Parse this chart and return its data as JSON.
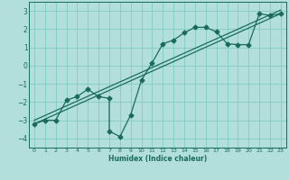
{
  "xlabel": "Humidex (Indice chaleur)",
  "bg_color": "#b2dfdb",
  "grid_color": "#80cbc4",
  "line_color": "#1a6b5a",
  "xlim": [
    -0.5,
    23.5
  ],
  "ylim": [
    -4.5,
    3.5
  ],
  "xticks": [
    0,
    1,
    2,
    3,
    4,
    5,
    6,
    7,
    8,
    9,
    10,
    11,
    12,
    13,
    14,
    15,
    16,
    17,
    18,
    19,
    20,
    21,
    22,
    23
  ],
  "yticks": [
    -4,
    -3,
    -2,
    -1,
    0,
    1,
    2,
    3
  ],
  "curve_x": [
    0,
    1,
    2,
    3,
    4,
    5,
    6,
    7,
    7,
    8,
    9,
    10,
    11,
    12,
    13,
    14,
    15,
    16,
    17,
    18,
    19,
    20,
    21,
    22,
    23
  ],
  "curve_y": [
    -3.2,
    -3.0,
    -3.0,
    -1.9,
    -1.7,
    -1.3,
    -1.7,
    -1.8,
    -3.6,
    -3.9,
    -2.7,
    -0.8,
    0.15,
    1.2,
    1.4,
    1.8,
    2.1,
    2.1,
    1.85,
    1.2,
    1.15,
    1.15,
    2.85,
    2.75,
    2.85
  ],
  "line1_x": [
    0,
    23
  ],
  "line1_y": [
    -3.2,
    2.85
  ],
  "line2_x": [
    0,
    23
  ],
  "line2_y": [
    -3.0,
    3.05
  ],
  "marker": "D",
  "markersize": 2.5,
  "linewidth": 0.9
}
